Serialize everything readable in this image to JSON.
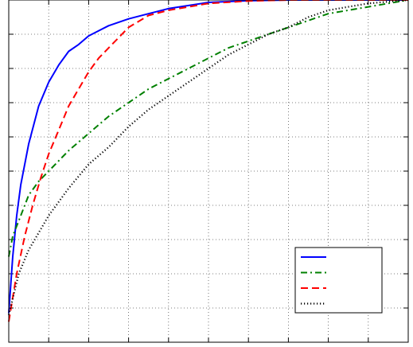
{
  "chart_data": {
    "type": "line",
    "title": "",
    "xlabel": "",
    "ylabel": "",
    "xlim": [
      0,
      10
    ],
    "ylim": [
      0,
      1
    ],
    "grid": true,
    "legend_placement": "bottom-right",
    "series": [
      {
        "key": "blue-solid",
        "color": "#0000ff",
        "dash": "solid",
        "x": [
          0.0,
          0.1,
          0.2,
          0.3,
          0.5,
          0.75,
          1.0,
          1.25,
          1.5,
          1.75,
          2.0,
          2.5,
          3.0,
          3.5,
          4.0,
          5.0,
          6.0,
          7.0,
          8.0,
          9.0,
          10.0
        ],
        "y": [
          0.085,
          0.25,
          0.37,
          0.46,
          0.58,
          0.69,
          0.76,
          0.81,
          0.85,
          0.87,
          0.895,
          0.925,
          0.945,
          0.96,
          0.975,
          0.993,
          0.998,
          1.0,
          1.0,
          1.0,
          1.0
        ]
      },
      {
        "key": "green-dashdot",
        "color": "#008000",
        "dash": "dashdot",
        "x": [
          0.0,
          0.1,
          0.3,
          0.5,
          0.75,
          1.0,
          1.5,
          2.0,
          2.5,
          3.0,
          3.5,
          4.0,
          4.5,
          5.0,
          5.5,
          6.0,
          6.5,
          7.0,
          7.5,
          8.0,
          8.5,
          9.0,
          9.5,
          10.0
        ],
        "y": [
          0.25,
          0.31,
          0.37,
          0.43,
          0.47,
          0.5,
          0.56,
          0.61,
          0.66,
          0.7,
          0.74,
          0.77,
          0.8,
          0.83,
          0.86,
          0.88,
          0.9,
          0.92,
          0.94,
          0.96,
          0.97,
          0.98,
          0.99,
          1.0
        ]
      },
      {
        "key": "red-dashed",
        "color": "#ff0000",
        "dash": "dashed",
        "x": [
          0.0,
          0.2,
          0.4,
          0.6,
          0.8,
          1.0,
          1.25,
          1.5,
          1.75,
          2.0,
          2.25,
          2.5,
          2.75,
          3.0,
          3.5,
          4.0,
          5.0,
          6.0,
          7.0,
          8.0,
          9.0,
          10.0
        ],
        "y": [
          0.06,
          0.2,
          0.31,
          0.4,
          0.48,
          0.55,
          0.62,
          0.69,
          0.74,
          0.79,
          0.83,
          0.86,
          0.89,
          0.92,
          0.955,
          0.97,
          0.99,
          0.997,
          1.0,
          1.0,
          1.0,
          1.0
        ]
      },
      {
        "key": "black-dotted",
        "color": "#000000",
        "dash": "dotted",
        "x": [
          0.0,
          0.25,
          0.5,
          1.0,
          1.5,
          2.0,
          2.5,
          3.0,
          3.5,
          4.0,
          4.5,
          5.0,
          5.5,
          6.0,
          6.5,
          7.0,
          7.5,
          8.0,
          9.0,
          10.0
        ],
        "y": [
          0.08,
          0.2,
          0.27,
          0.37,
          0.45,
          0.52,
          0.57,
          0.63,
          0.68,
          0.72,
          0.76,
          0.8,
          0.84,
          0.87,
          0.9,
          0.92,
          0.95,
          0.97,
          0.99,
          1.0
        ]
      }
    ]
  }
}
